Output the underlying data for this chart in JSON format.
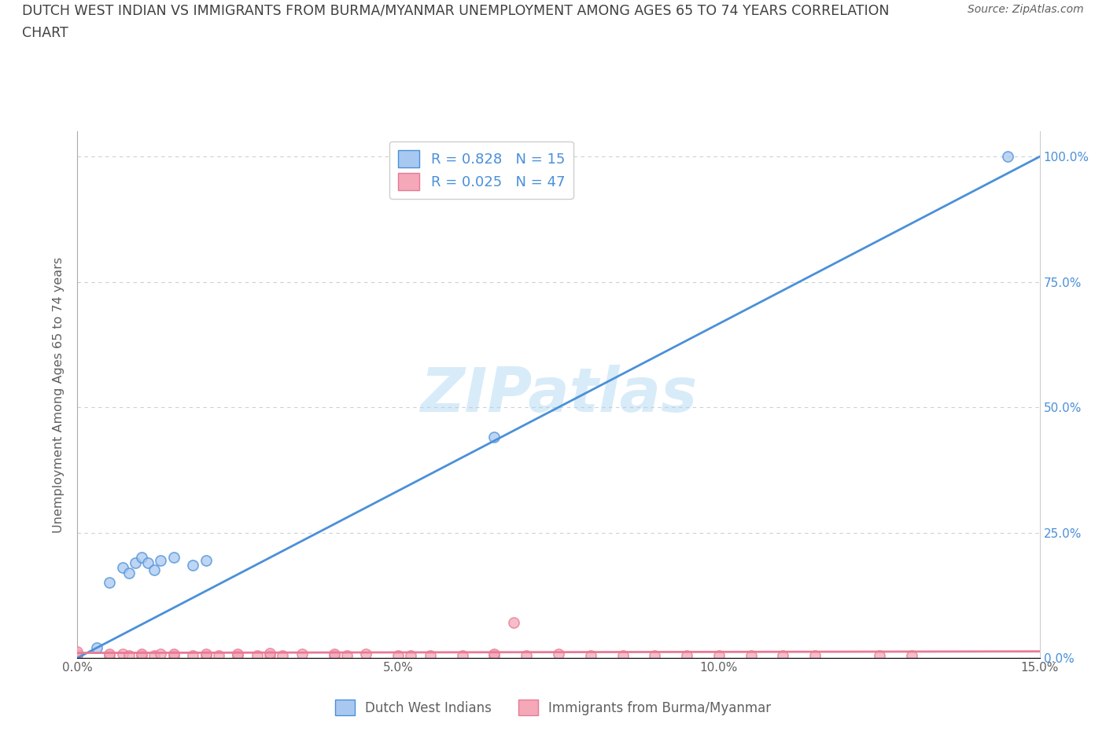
{
  "title_line1": "DUTCH WEST INDIAN VS IMMIGRANTS FROM BURMA/MYANMAR UNEMPLOYMENT AMONG AGES 65 TO 74 YEARS CORRELATION",
  "title_line2": "CHART",
  "source": "Source: ZipAtlas.com",
  "ylabel": "Unemployment Among Ages 65 to 74 years",
  "xlim": [
    0.0,
    0.15
  ],
  "ylim": [
    0.0,
    1.05
  ],
  "x_ticks": [
    0.0,
    0.05,
    0.1,
    0.15
  ],
  "x_tick_labels": [
    "0.0%",
    "5.0%",
    "10.0%",
    "15.0%"
  ],
  "y_ticks": [
    0.0,
    0.25,
    0.5,
    0.75,
    1.0
  ],
  "y_tick_labels": [
    "0.0%",
    "25.0%",
    "50.0%",
    "75.0%",
    "100.0%"
  ],
  "watermark": "ZIPatlas",
  "blue_color": "#a8c8f0",
  "pink_color": "#f4a8b8",
  "blue_line_color": "#4a90d9",
  "pink_line_color": "#e87a95",
  "legend_blue_label": "R = 0.828   N = 15",
  "legend_pink_label": "R = 0.025   N = 47",
  "blue_line_x": [
    0.0,
    0.15
  ],
  "blue_line_y": [
    0.0,
    1.0
  ],
  "pink_line_x": [
    0.0,
    0.15
  ],
  "pink_line_y": [
    0.01,
    0.013
  ],
  "blue_scatter_x": [
    0.003,
    0.005,
    0.007,
    0.008,
    0.009,
    0.01,
    0.011,
    0.012,
    0.013,
    0.015,
    0.018,
    0.02,
    0.065,
    0.065,
    0.145
  ],
  "blue_scatter_y": [
    0.02,
    0.15,
    0.18,
    0.17,
    0.19,
    0.2,
    0.19,
    0.175,
    0.195,
    0.2,
    0.185,
    0.195,
    0.44,
    1.0,
    1.0
  ],
  "pink_scatter_x": [
    0.0,
    0.0,
    0.0,
    0.005,
    0.005,
    0.007,
    0.008,
    0.01,
    0.01,
    0.012,
    0.013,
    0.015,
    0.015,
    0.018,
    0.02,
    0.02,
    0.022,
    0.025,
    0.025,
    0.028,
    0.03,
    0.03,
    0.032,
    0.035,
    0.04,
    0.04,
    0.042,
    0.045,
    0.05,
    0.052,
    0.055,
    0.06,
    0.065,
    0.065,
    0.068,
    0.07,
    0.075,
    0.08,
    0.085,
    0.09,
    0.095,
    0.1,
    0.105,
    0.11,
    0.115,
    0.125,
    0.13
  ],
  "pink_scatter_y": [
    0.005,
    0.008,
    0.012,
    0.005,
    0.008,
    0.008,
    0.005,
    0.005,
    0.008,
    0.005,
    0.008,
    0.005,
    0.008,
    0.005,
    0.005,
    0.008,
    0.005,
    0.005,
    0.008,
    0.005,
    0.005,
    0.01,
    0.005,
    0.008,
    0.005,
    0.008,
    0.005,
    0.008,
    0.005,
    0.005,
    0.005,
    0.005,
    0.005,
    0.008,
    0.07,
    0.005,
    0.008,
    0.005,
    0.005,
    0.005,
    0.005,
    0.005,
    0.005,
    0.005,
    0.005,
    0.005,
    0.005
  ],
  "background_color": "#ffffff",
  "grid_color": "#d0d0d0",
  "title_color": "#404040",
  "axis_color": "#606060",
  "right_tick_color": "#4a90d9"
}
